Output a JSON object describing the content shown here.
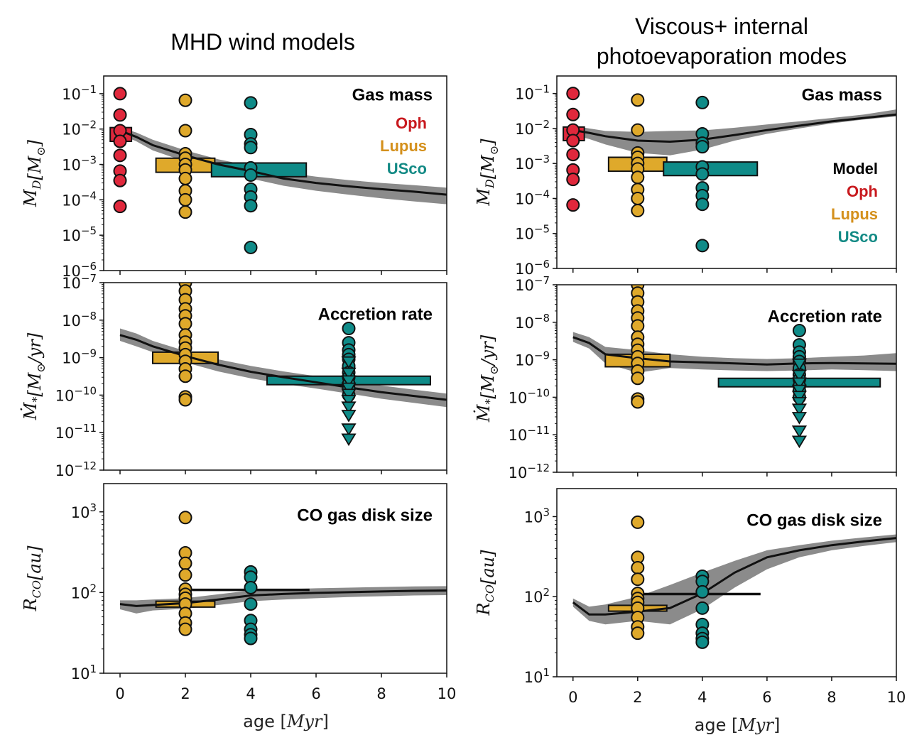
{
  "titles": {
    "left": "MHD wind models",
    "right_line1": "Viscous+ internal",
    "right_line2": "photoevaporation modes"
  },
  "colors": {
    "oph": "#e0283c",
    "lupus": "#dfa92b",
    "usco": "#0f8b88",
    "model_line": "#111111",
    "model_band": "#777777",
    "legend_oph": "#c8191e",
    "legend_lupus": "#d4901c",
    "legend_usco": "#138a85"
  },
  "legend": {
    "model": "Model",
    "oph": "Oph",
    "lupus": "Lupus",
    "usco": "USco"
  },
  "xaxis": {
    "label": "age [Myr]",
    "ticks": [
      0,
      2,
      4,
      6,
      8,
      10
    ],
    "range": [
      -0.5,
      10
    ]
  },
  "chart_data": [
    {
      "type": "scatter",
      "id": "left-gas-mass",
      "title": "Gas mass",
      "ylabel": "M_D [M_⊙]",
      "yscale": "log",
      "ylim_exp": [
        -6,
        -0.5
      ],
      "ytick_exps": [
        -6,
        -5,
        -4,
        -3,
        -2,
        -1
      ],
      "show_legend": true,
      "legend_entries": [
        "oph",
        "lupus",
        "usco"
      ],
      "points": {
        "oph": {
          "x": 0,
          "y": [
            0.1,
            0.025,
            0.009,
            0.0045,
            0.0018,
            0.00065,
            0.00035,
            6.5e-05
          ]
        },
        "lupus": {
          "x": 2,
          "y": [
            0.065,
            0.009,
            0.002,
            0.0015,
            0.001,
            0.0007,
            0.0004,
            0.00018,
            0.0001,
            4.5e-05
          ]
        },
        "usco": {
          "x": 4,
          "y": [
            0.055,
            0.007,
            0.0038,
            0.003,
            0.0008,
            0.0005,
            0.0002,
            0.00012,
            6.8e-05,
            4.5e-06
          ]
        }
      },
      "boxes": [
        {
          "group": "oph",
          "x0": -0.3,
          "x1": 0.35,
          "y0": 0.0045,
          "y1": 0.011
        },
        {
          "group": "lupus",
          "x0": 1.1,
          "x1": 2.9,
          "y0": 0.0006,
          "y1": 0.0015
        },
        {
          "group": "usco",
          "x0": 2.8,
          "x1": 5.7,
          "y0": 0.00045,
          "y1": 0.0011
        }
      ],
      "model": {
        "x": [
          0,
          0.5,
          1,
          2,
          3,
          4,
          5,
          6,
          7,
          8,
          9,
          10
        ],
        "y": [
          0.009,
          0.006,
          0.0035,
          0.0018,
          0.001,
          0.00065,
          0.0004,
          0.0003,
          0.00024,
          0.0002,
          0.00017,
          0.00014
        ],
        "lo": [
          0.007,
          0.0045,
          0.0025,
          0.0012,
          0.0006,
          0.0004,
          0.00025,
          0.00018,
          0.00014,
          0.00011,
          9e-05,
          7.5e-05
        ],
        "hi": [
          0.011,
          0.008,
          0.005,
          0.0025,
          0.0014,
          0.0009,
          0.0006,
          0.00045,
          0.00036,
          0.0003,
          0.00026,
          0.00022
        ]
      },
      "upper_limits": {}
    },
    {
      "type": "scatter",
      "id": "left-accretion",
      "title": "Accretion rate",
      "ylabel": "Ṁ_* [M_⊙/yr]",
      "yscale": "log",
      "ylim_exp": [
        -12,
        -7
      ],
      "ytick_exps": [
        -12,
        -11,
        -10,
        -9,
        -8,
        -7
      ],
      "show_legend": false,
      "points": {
        "lupus": {
          "x": 2,
          "y": [
            1e-07,
            6e-08,
            3.5e-08,
            2e-08,
            1.3e-08,
            8e-09,
            4e-09,
            2.6e-09,
            1.8e-09,
            1.2e-09,
            8e-10,
            5e-10,
            3.2e-10,
            9e-11,
            7.5e-11
          ]
        },
        "usco": {
          "x": 7,
          "y": [
            6e-09,
            2.5e-09,
            1.6e-09,
            1.2e-09,
            9e-10,
            6e-10,
            4e-10,
            3e-10,
            2e-10,
            1.5e-10,
            1e-10
          ]
        }
      },
      "upper_limits": {
        "usco": {
          "x": 7,
          "y": [
            8e-10,
            4e-10,
            2.5e-10,
            1.6e-10,
            1.1e-10,
            7.5e-11,
            5e-11,
            3e-11,
            1.3e-11,
            7e-12
          ]
        }
      },
      "boxes": [
        {
          "group": "lupus",
          "x0": 1.0,
          "x1": 3.0,
          "y0": 7e-10,
          "y1": 1.4e-09
        },
        {
          "group": "usco",
          "x0": 4.5,
          "x1": 9.5,
          "y0": 1.9e-10,
          "y1": 3.2e-10
        }
      ],
      "model": {
        "x": [
          0,
          0.5,
          1,
          2,
          3,
          4,
          5,
          6,
          7,
          8,
          9,
          10
        ],
        "y": [
          4e-09,
          3e-09,
          2e-09,
          1.1e-09,
          6.5e-10,
          4.2e-10,
          3e-10,
          2.2e-10,
          1.6e-10,
          1.2e-10,
          9.5e-11,
          7.5e-11
        ],
        "lo": [
          2.8e-09,
          2e-09,
          1.4e-09,
          7.5e-10,
          4.3e-10,
          2.8e-10,
          2e-10,
          1.5e-10,
          1.1e-10,
          8e-11,
          6.2e-11,
          4.8e-11
        ],
        "hi": [
          6e-09,
          4.4e-09,
          2.8e-09,
          1.5e-09,
          9e-10,
          6e-10,
          4.3e-10,
          3.2e-10,
          2.4e-10,
          1.8e-10,
          1.4e-10,
          1.1e-10
        ]
      }
    },
    {
      "type": "scatter",
      "id": "left-co-size",
      "title": "CO gas disk size",
      "ylabel": "R_CO [au]",
      "yscale": "log",
      "ylim_exp": [
        1,
        3.35
      ],
      "ytick_exps": [
        1,
        2,
        3
      ],
      "show_legend": false,
      "points": {
        "lupus": {
          "x": 2,
          "y": [
            850,
            310,
            230,
            165,
            110,
            95,
            85,
            72,
            55,
            42,
            35
          ]
        },
        "usco": {
          "x": 4,
          "y": [
            180,
            155,
            115,
            72,
            45,
            35,
            30,
            27
          ]
        }
      },
      "upper_limits": {},
      "boxes": [
        {
          "group": "lupus",
          "x0": 1.1,
          "x1": 2.9,
          "y0": 66,
          "y1": 78
        }
      ],
      "hlines": [
        {
          "x0": 2.2,
          "x1": 5.8,
          "y": 108
        }
      ],
      "model": {
        "x": [
          0,
          0.5,
          1,
          2,
          3,
          4,
          5,
          6,
          7,
          8,
          9,
          10
        ],
        "y": [
          72,
          68,
          70,
          74,
          82,
          92,
          96,
          99,
          101,
          103,
          105,
          106
        ],
        "lo": [
          62,
          55,
          60,
          63,
          70,
          78,
          82,
          85,
          88,
          90,
          92,
          93
        ],
        "hi": [
          80,
          80,
          82,
          85,
          95,
          106,
          110,
          113,
          115,
          117,
          119,
          120
        ]
      }
    },
    {
      "type": "scatter",
      "id": "right-gas-mass",
      "title": "Gas mass",
      "ylabel": "M_D [M_⊙]",
      "yscale": "log",
      "ylim_exp": [
        -6,
        -0.5
      ],
      "ytick_exps": [
        -6,
        -5,
        -4,
        -3,
        -2,
        -1
      ],
      "show_legend": true,
      "legend_entries": [
        "model",
        "oph",
        "lupus",
        "usco"
      ],
      "points": {
        "oph": {
          "x": 0,
          "y": [
            0.1,
            0.025,
            0.009,
            0.0045,
            0.0018,
            0.00065,
            0.00035,
            6.5e-05
          ]
        },
        "lupus": {
          "x": 2,
          "y": [
            0.065,
            0.009,
            0.002,
            0.0015,
            0.001,
            0.0007,
            0.0004,
            0.00018,
            0.0001,
            4.5e-05
          ]
        },
        "usco": {
          "x": 4,
          "y": [
            0.055,
            0.007,
            0.0038,
            0.003,
            0.0008,
            0.0005,
            0.0002,
            0.00012,
            6.8e-05,
            4.5e-06
          ]
        }
      },
      "upper_limits": {},
      "boxes": [
        {
          "group": "oph",
          "x0": -0.3,
          "x1": 0.35,
          "y0": 0.0045,
          "y1": 0.011
        },
        {
          "group": "lupus",
          "x0": 1.1,
          "x1": 2.9,
          "y0": 0.0006,
          "y1": 0.0015
        },
        {
          "group": "usco",
          "x0": 2.8,
          "x1": 5.7,
          "y0": 0.00045,
          "y1": 0.0011
        }
      ],
      "model": {
        "x": [
          0,
          0.5,
          1,
          2,
          3,
          4,
          5,
          6,
          7,
          8,
          9,
          10
        ],
        "y": [
          0.009,
          0.0075,
          0.006,
          0.0045,
          0.0042,
          0.0048,
          0.0065,
          0.009,
          0.012,
          0.016,
          0.02,
          0.025
        ],
        "lo": [
          0.0065,
          0.005,
          0.0035,
          0.002,
          0.0017,
          0.0025,
          0.0045,
          0.007,
          0.01,
          0.014,
          0.018,
          0.022
        ],
        "hi": [
          0.012,
          0.01,
          0.0085,
          0.008,
          0.0085,
          0.0088,
          0.0105,
          0.013,
          0.016,
          0.02,
          0.025,
          0.035
        ]
      }
    },
    {
      "type": "scatter",
      "id": "right-accretion",
      "title": "Accretion rate",
      "ylabel": "Ṁ_* [M_⊙/yr]",
      "yscale": "log",
      "ylim_exp": [
        -12,
        -7
      ],
      "ytick_exps": [
        -12,
        -11,
        -10,
        -9,
        -8,
        -7
      ],
      "show_legend": false,
      "points": {
        "lupus": {
          "x": 2,
          "y": [
            1e-07,
            6e-08,
            3.5e-08,
            2e-08,
            1.3e-08,
            8e-09,
            4e-09,
            2.6e-09,
            1.8e-09,
            1.2e-09,
            8e-10,
            5e-10,
            3.2e-10,
            9e-11,
            7.5e-11
          ]
        },
        "usco": {
          "x": 7,
          "y": [
            6e-09,
            2.5e-09,
            1.6e-09,
            1.2e-09,
            9e-10,
            6e-10,
            4e-10,
            3e-10,
            2e-10,
            1.5e-10,
            1e-10
          ]
        }
      },
      "upper_limits": {
        "usco": {
          "x": 7,
          "y": [
            8e-10,
            4e-10,
            2.5e-10,
            1.6e-10,
            1.1e-10,
            7.5e-11,
            5e-11,
            3e-11,
            1.3e-11,
            7e-12
          ]
        }
      },
      "boxes": [
        {
          "group": "lupus",
          "x0": 1.0,
          "x1": 3.0,
          "y0": 6.5e-10,
          "y1": 1.4e-09
        },
        {
          "group": "usco",
          "x0": 4.5,
          "x1": 9.5,
          "y0": 1.9e-10,
          "y1": 3.2e-10
        }
      ],
      "model": {
        "x": [
          0,
          0.5,
          1,
          2,
          3,
          4,
          5,
          6,
          7,
          8,
          9,
          10
        ],
        "y": [
          4e-09,
          2.8e-09,
          1.4e-09,
          1.1e-09,
          9e-10,
          8.5e-10,
          8e-10,
          7.5e-10,
          8e-10,
          8.2e-10,
          8e-10,
          7.8e-10
        ],
        "lo": [
          3e-09,
          2e-09,
          8e-10,
          4.5e-10,
          6e-10,
          5.5e-10,
          5.2e-10,
          5e-10,
          5.2e-10,
          5.5e-10,
          5.3e-10,
          5e-10
        ],
        "hi": [
          5.5e-09,
          4e-09,
          2.2e-09,
          1.8e-09,
          1.4e-09,
          1.2e-09,
          1.1e-09,
          1.05e-09,
          1.1e-09,
          1.2e-09,
          1.3e-09,
          1.5e-09
        ]
      }
    },
    {
      "type": "scatter",
      "id": "right-co-size",
      "title": "CO gas disk size",
      "ylabel": "R_CO [au]",
      "yscale": "log",
      "ylim_exp": [
        1,
        3.35
      ],
      "ytick_exps": [
        1,
        2,
        3
      ],
      "show_legend": false,
      "points": {
        "lupus": {
          "x": 2,
          "y": [
            850,
            310,
            230,
            165,
            110,
            95,
            85,
            72,
            55,
            42,
            35
          ]
        },
        "usco": {
          "x": 4,
          "y": [
            180,
            155,
            115,
            72,
            45,
            35,
            30,
            27
          ]
        }
      },
      "upper_limits": {},
      "boxes": [
        {
          "group": "lupus",
          "x0": 1.1,
          "x1": 2.9,
          "y0": 66,
          "y1": 78
        }
      ],
      "hlines": [
        {
          "x0": 2.2,
          "x1": 5.8,
          "y": 108
        }
      ],
      "model": {
        "x": [
          0,
          0.5,
          1,
          2,
          3,
          4,
          5,
          6,
          7,
          8,
          9,
          10
        ],
        "y": [
          85,
          60,
          60,
          65,
          72,
          110,
          200,
          310,
          380,
          440,
          490,
          540
        ],
        "lo": [
          75,
          50,
          45,
          50,
          45,
          70,
          130,
          220,
          310,
          380,
          430,
          480
        ],
        "hi": [
          95,
          75,
          80,
          100,
          140,
          200,
          280,
          380,
          440,
          500,
          550,
          600
        ]
      }
    }
  ]
}
